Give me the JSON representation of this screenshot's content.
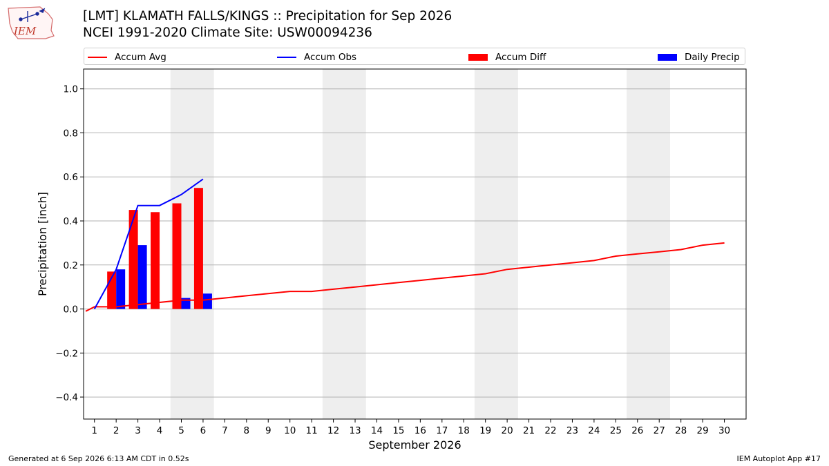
{
  "header": {
    "title_line1": "[LMT] KLAMATH FALLS/KINGS :: Precipitation for Sep 2026",
    "title_line2": "NCEI 1991-2020 Climate Site: USW00094236",
    "logo_text": "IEM"
  },
  "legend": {
    "items": [
      {
        "label": "Accum Avg",
        "kind": "line",
        "color": "#ff0000"
      },
      {
        "label": "Accum Obs",
        "kind": "line",
        "color": "#0000ff"
      },
      {
        "label": "Accum Diff",
        "kind": "patch",
        "color": "#ff0000"
      },
      {
        "label": "Daily Precip",
        "kind": "patch",
        "color": "#0000ff"
      }
    ]
  },
  "footer": {
    "left": "Generated at 6 Sep 2026 6:13 AM CDT in 0.52s",
    "right": "IEM Autoplot App #17"
  },
  "chart_data": {
    "type": "bar",
    "xlabel": "September 2026",
    "ylabel": "Precipitation [inch]",
    "xlim": [
      0.5,
      31
    ],
    "ylim": [
      -0.5,
      1.09
    ],
    "x_ticks": [
      1,
      2,
      3,
      4,
      5,
      6,
      7,
      8,
      9,
      10,
      11,
      12,
      13,
      14,
      15,
      16,
      17,
      18,
      19,
      20,
      21,
      22,
      23,
      24,
      25,
      26,
      27,
      28,
      29,
      30
    ],
    "y_ticks": [
      -0.4,
      -0.2,
      0.0,
      0.2,
      0.4,
      0.6,
      0.8,
      1.0
    ],
    "y_tick_labels": [
      "−0.4",
      "−0.2",
      "0.0",
      "0.2",
      "0.4",
      "0.6",
      "0.8",
      "1.0"
    ],
    "grid": "horizontal",
    "weekend_shading": [
      [
        5,
        6
      ],
      [
        12,
        13
      ],
      [
        19,
        20
      ],
      [
        26,
        27
      ]
    ],
    "shade_color": "#eeeeee",
    "accum_avg": {
      "name": "Accum Avg",
      "color": "#ff0000",
      "x": [
        0.6,
        1,
        2,
        3,
        4,
        5,
        6,
        7,
        8,
        9,
        10,
        11,
        12,
        13,
        14,
        15,
        16,
        17,
        18,
        19,
        20,
        21,
        22,
        23,
        24,
        25,
        26,
        27,
        28,
        29,
        30
      ],
      "y": [
        -0.01,
        0.01,
        0.01,
        0.02,
        0.03,
        0.04,
        0.04,
        0.05,
        0.06,
        0.07,
        0.08,
        0.08,
        0.09,
        0.1,
        0.11,
        0.12,
        0.13,
        0.14,
        0.15,
        0.16,
        0.18,
        0.19,
        0.2,
        0.21,
        0.22,
        0.24,
        0.25,
        0.26,
        0.27,
        0.29,
        0.3
      ]
    },
    "accum_obs": {
      "name": "Accum Obs",
      "color": "#0000ff",
      "x": [
        1,
        2,
        3,
        4,
        5,
        6
      ],
      "y": [
        0.0,
        0.18,
        0.47,
        0.47,
        0.52,
        0.59
      ]
    },
    "accum_diff": {
      "name": "Accum Diff",
      "color": "#ff0000",
      "x": [
        2,
        3,
        4,
        5,
        6
      ],
      "y": [
        0.17,
        0.45,
        0.44,
        0.48,
        0.55
      ]
    },
    "daily_precip": {
      "name": "Daily Precip",
      "color": "#0000ff",
      "x": [
        2,
        3,
        5,
        6
      ],
      "y": [
        0.18,
        0.29,
        0.05,
        0.07
      ]
    }
  }
}
